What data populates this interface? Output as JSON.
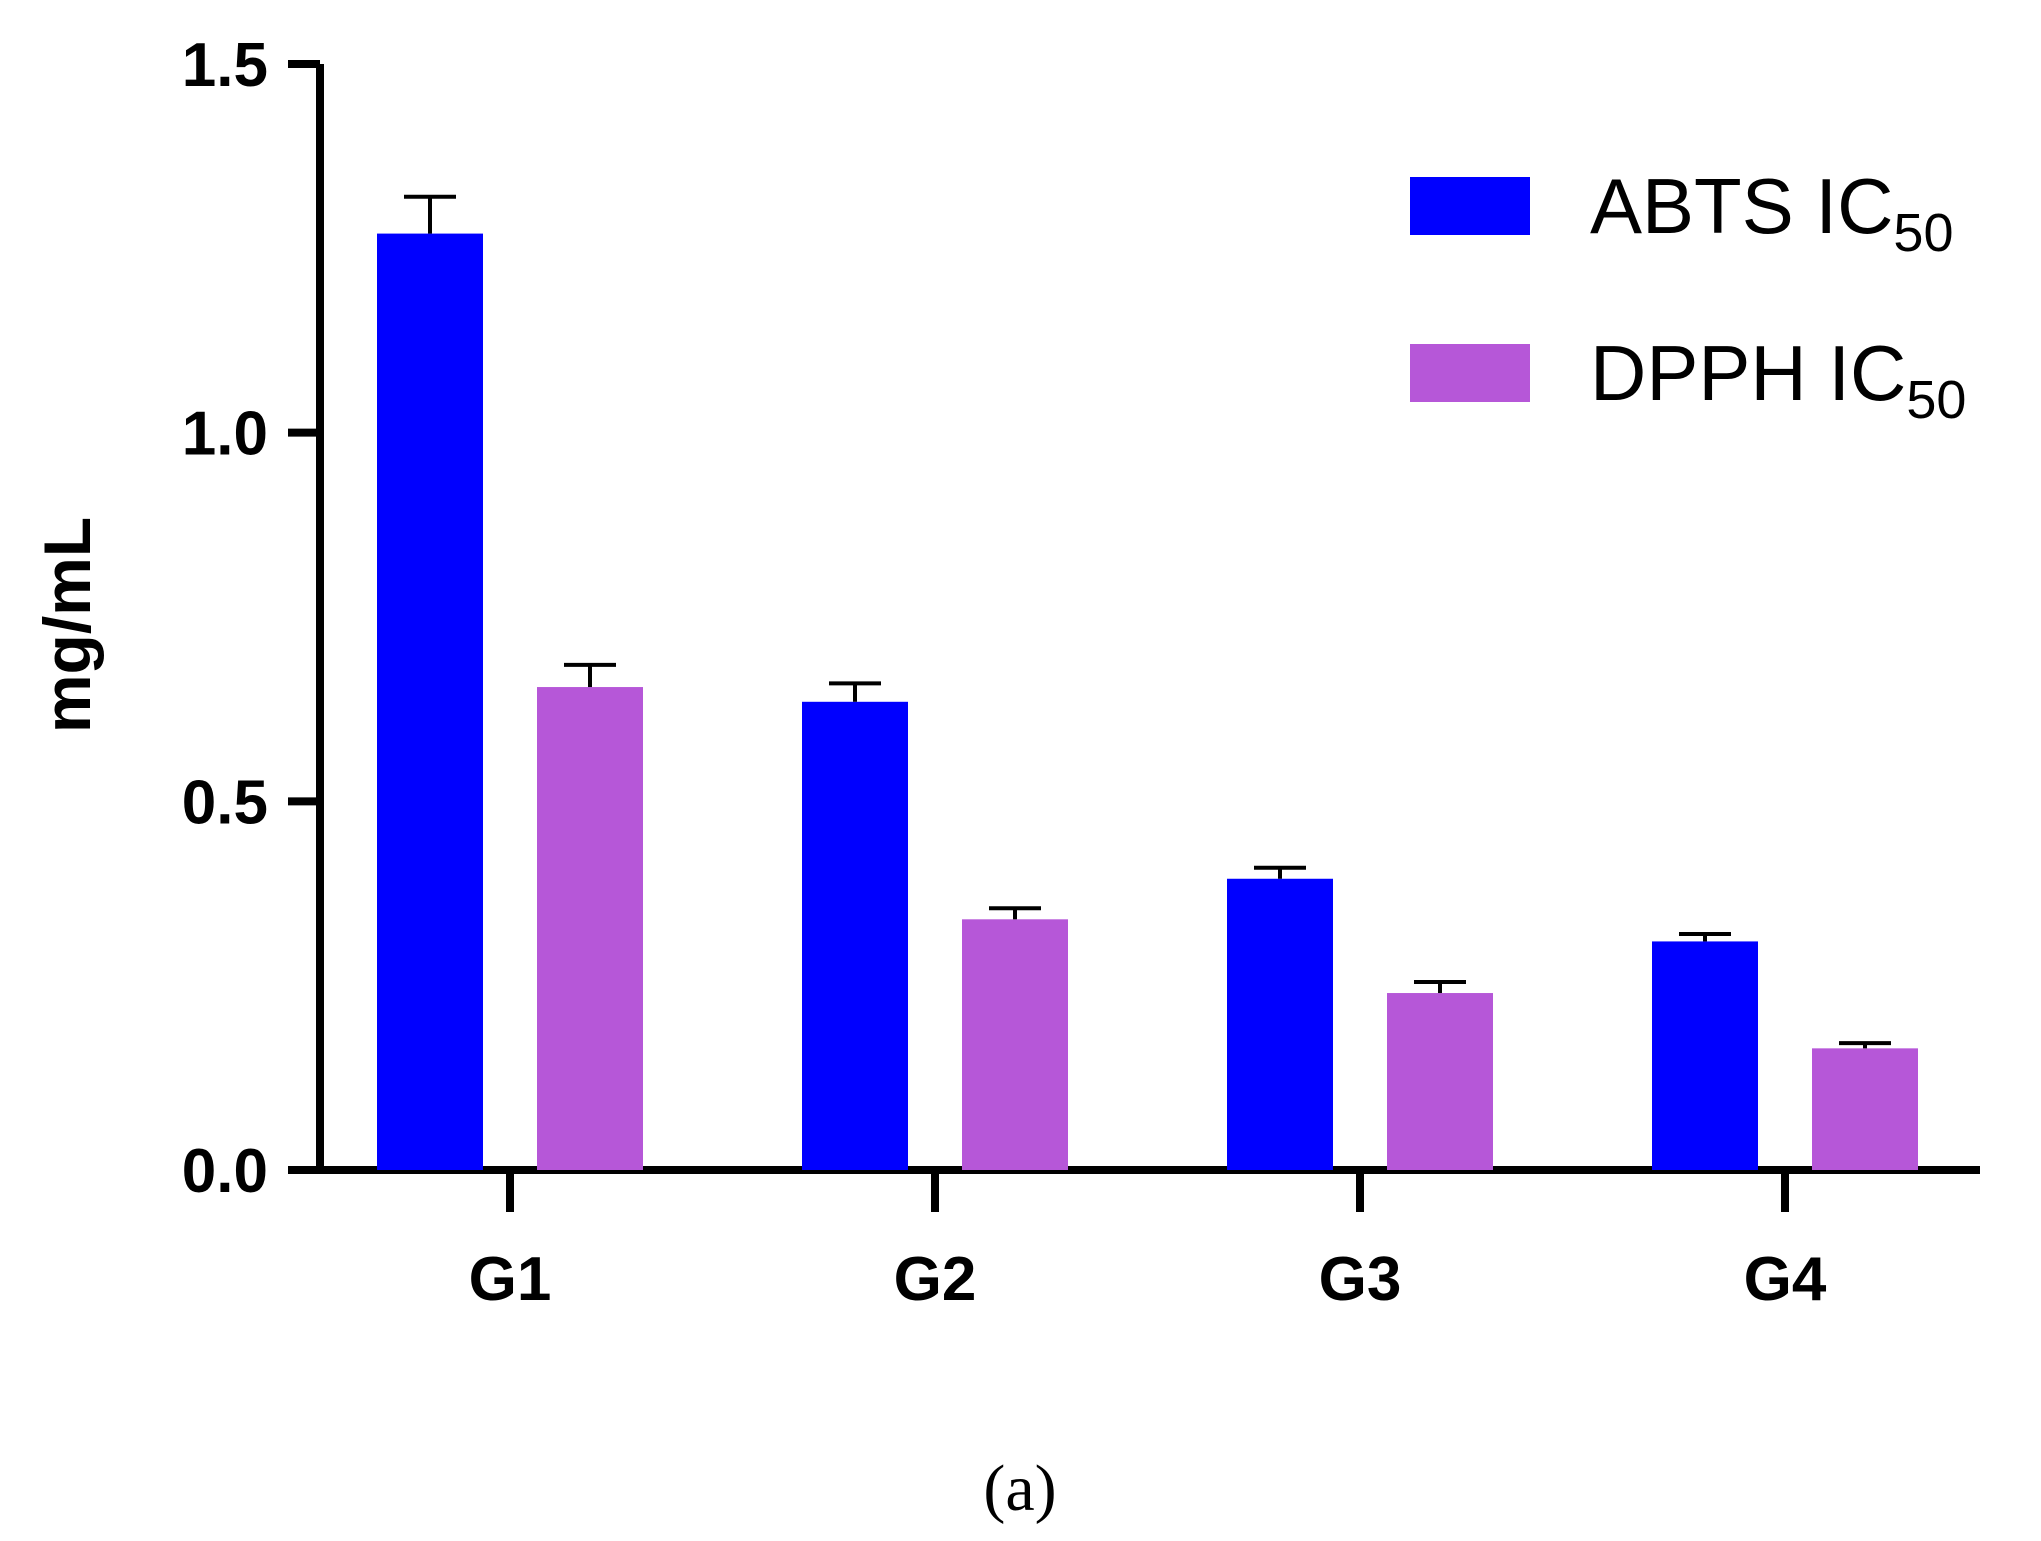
{
  "chart_data": {
    "type": "bar",
    "categories": [
      "G1",
      "G2",
      "G3",
      "G4"
    ],
    "series": [
      {
        "name": "ABTS IC",
        "name_subscript": "50",
        "color": "#0000ff",
        "values": [
          1.27,
          0.635,
          0.395,
          0.31
        ],
        "errors": [
          0.05,
          0.025,
          0.015,
          0.01
        ]
      },
      {
        "name": "DPPH IC",
        "name_subscript": "50",
        "color": "#b657d8",
        "values": [
          0.655,
          0.34,
          0.24,
          0.165
        ],
        "errors": [
          0.03,
          0.015,
          0.015,
          0.007
        ]
      }
    ],
    "title": "",
    "xlabel": "",
    "ylabel": "mg/mL",
    "ylim": [
      0,
      1.5
    ],
    "yticks": [
      "0.0",
      "0.5",
      "1.0",
      "1.5"
    ],
    "grid": false,
    "legend_position": "top-right"
  },
  "caption": "(a)"
}
